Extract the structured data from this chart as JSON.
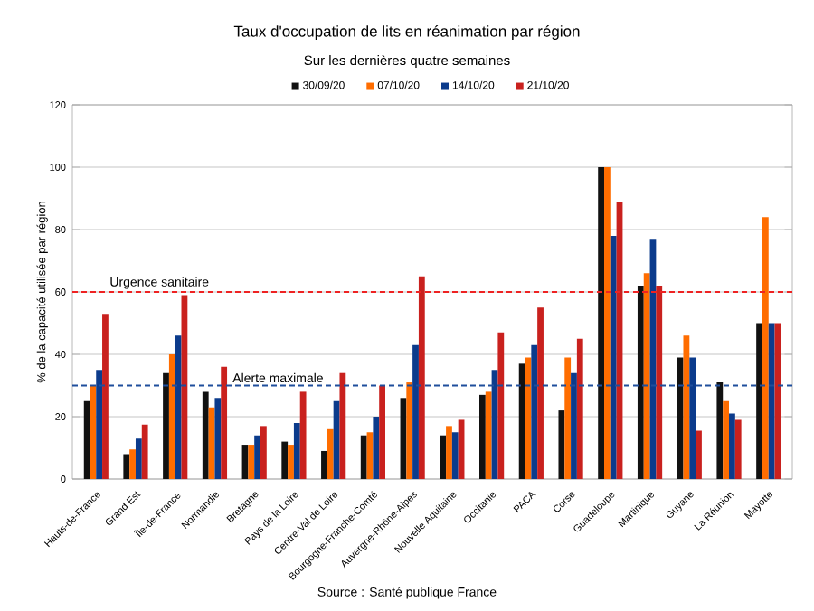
{
  "chart_data": {
    "type": "bar",
    "title": "Taux d'occupation de lits en réanimation par région",
    "subtitle": "Sur les dernières quatre semaines",
    "ylabel": "% de la capacité utilisée par région",
    "categories": [
      "Hauts-de-France",
      "Grand Est",
      "Île-de-France",
      "Normandie",
      "Bretagne",
      "Pays de la Loire",
      "Centre-Val de Loire",
      "Bourgogne-Franche-Comté",
      "Auvergne-Rhône-Alpes",
      "Nouvelle Aquitaine",
      "Occitanie",
      "PACA",
      "Corse",
      "Guadeloupe",
      "Martinique",
      "Guyane",
      "La Réunion",
      "Mayotte"
    ],
    "series": [
      {
        "name": "30/09/20",
        "color": "#111111",
        "values": [
          25,
          8,
          34,
          28,
          11,
          12,
          9,
          14,
          26,
          14,
          27,
          37,
          22,
          100,
          62,
          39,
          31,
          50
        ]
      },
      {
        "name": "07/10/20",
        "color": "#ff6d00",
        "values": [
          30,
          9.5,
          40,
          23,
          11,
          11,
          16,
          15,
          31,
          17,
          28,
          39,
          39,
          100,
          66,
          46,
          25,
          84
        ]
      },
      {
        "name": "14/10/20",
        "color": "#0b3b8c",
        "values": [
          35,
          13,
          46,
          26,
          14,
          18,
          25,
          20,
          43,
          15,
          35,
          43,
          34,
          78,
          77,
          39,
          21,
          50
        ]
      },
      {
        "name": "21/10/20",
        "color": "#c9211e",
        "values": [
          53,
          17.5,
          59,
          36,
          17,
          28,
          34,
          30,
          65,
          19,
          47,
          55,
          45,
          89,
          62,
          15.5,
          19,
          50
        ]
      }
    ],
    "ylim": [
      0,
      120
    ],
    "yticks": [
      0,
      20,
      40,
      60,
      80,
      100,
      120
    ],
    "grid": "y",
    "legend": "top",
    "ref_lines": [
      {
        "axis": "y",
        "value": 60,
        "label": "Urgence sanitaire",
        "color": "#ee2222",
        "line_style": "dashed"
      },
      {
        "axis": "y",
        "value": 30,
        "label": "Alerte maximale",
        "color": "#1f4e9c",
        "line_style": "dashed"
      }
    ],
    "annotations": [
      "Source : Santé publique France"
    ]
  }
}
